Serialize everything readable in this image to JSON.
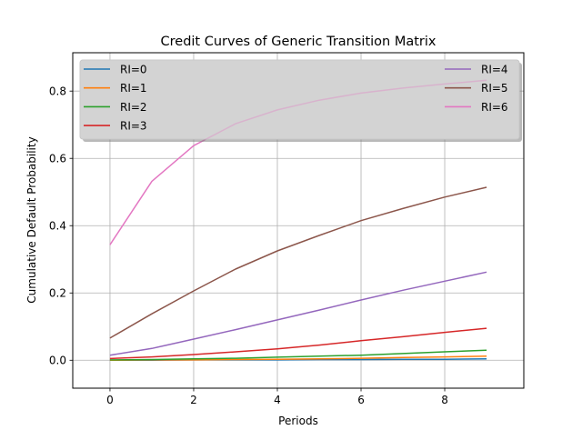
{
  "chart_data": {
    "type": "line",
    "title": "Credit Curves of Generic Transition Matrix",
    "xlabel": "Periods",
    "ylabel": "Cumulative Default Probability",
    "x": [
      0,
      1,
      2,
      3,
      4,
      5,
      6,
      7,
      8,
      9
    ],
    "xlim": [
      -0.89,
      9.89
    ],
    "ylim": [
      -0.083,
      0.914
    ],
    "xticks": [
      0,
      2,
      4,
      6,
      8
    ],
    "xtick_labels": [
      "0",
      "2",
      "4",
      "6",
      "8"
    ],
    "yticks": [
      0.0,
      0.2,
      0.4,
      0.6,
      0.8
    ],
    "ytick_labels": [
      "0.0",
      "0.2",
      "0.4",
      "0.6",
      "0.8"
    ],
    "grid": true,
    "legend_position": "upper (expanded across top, 2 columns)",
    "series": [
      {
        "name": "RI=0",
        "color": "#1f77b4",
        "values": [
          0.0,
          0.0,
          0.001,
          0.001,
          0.001,
          0.002,
          0.002,
          0.003,
          0.003,
          0.004
        ]
      },
      {
        "name": "RI=1",
        "color": "#ff7f0e",
        "values": [
          0.0,
          0.001,
          0.001,
          0.002,
          0.003,
          0.004,
          0.006,
          0.008,
          0.01,
          0.012
        ]
      },
      {
        "name": "RI=2",
        "color": "#2ca02c",
        "values": [
          0.001,
          0.002,
          0.004,
          0.006,
          0.009,
          0.012,
          0.015,
          0.02,
          0.025,
          0.03
        ]
      },
      {
        "name": "RI=3",
        "color": "#d62728",
        "values": [
          0.005,
          0.01,
          0.017,
          0.025,
          0.034,
          0.045,
          0.058,
          0.07,
          0.083,
          0.095
        ]
      },
      {
        "name": "RI=4",
        "color": "#9467bd",
        "values": [
          0.015,
          0.035,
          0.063,
          0.091,
          0.12,
          0.149,
          0.179,
          0.208,
          0.235,
          0.262
        ]
      },
      {
        "name": "RI=5",
        "color": "#8c564b",
        "values": [
          0.066,
          0.138,
          0.206,
          0.271,
          0.325,
          0.371,
          0.415,
          0.451,
          0.485,
          0.514
        ]
      },
      {
        "name": "RI=6",
        "color": "#e377c2",
        "values": [
          0.343,
          0.532,
          0.638,
          0.703,
          0.744,
          0.773,
          0.794,
          0.809,
          0.821,
          0.832
        ]
      }
    ]
  }
}
